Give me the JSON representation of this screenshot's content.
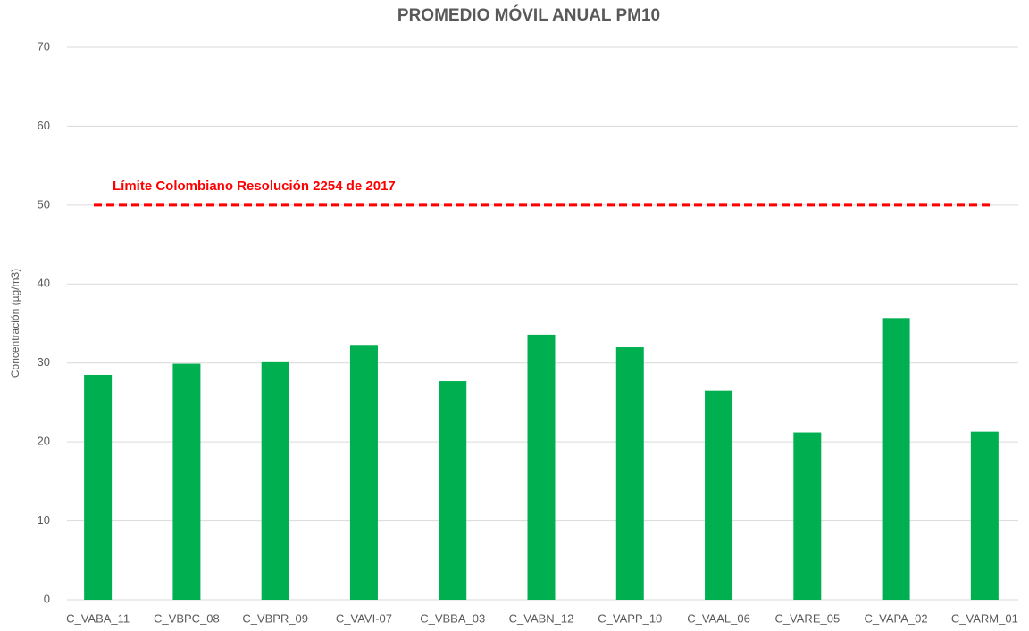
{
  "chart_data": {
    "type": "bar",
    "title": "PROMEDIO MÓVIL ANUAL PM10",
    "y_label": "Concentración (µg/m3)",
    "categories": [
      "C_VABA_11",
      "C_VBPC_08",
      "C_VBPR_09",
      "C_VAVI-07",
      "C_VBBA_03",
      "C_VABN_12",
      "C_VAPP_10",
      "C_VAAL_06",
      "C_VARE_05",
      "C_VAPA_02",
      "C_VARM_01"
    ],
    "values": [
      28.5,
      29.9,
      30.1,
      32.2,
      27.7,
      33.6,
      32.0,
      26.5,
      21.2,
      35.7,
      21.3
    ],
    "color": "#00b050",
    "ylim": [
      0,
      70
    ],
    "yticks": [
      0,
      10,
      20,
      30,
      40,
      50,
      60,
      70
    ],
    "grid": true,
    "reference_line": {
      "value": 50,
      "label": "Límite Colombiano Resolución 2254 de 2017",
      "color": "#ff0000",
      "style": "dashed"
    }
  }
}
